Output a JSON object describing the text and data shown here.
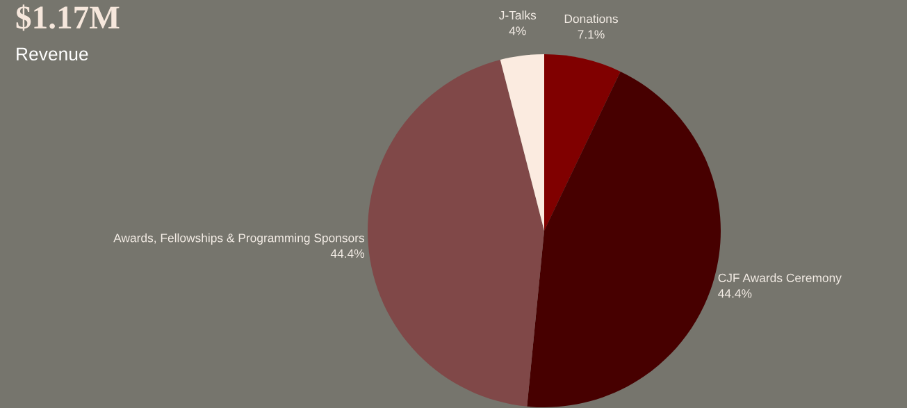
{
  "chart_data": {
    "type": "pie",
    "title": "$1.17M",
    "subtitle": "Revenue",
    "categories": [
      "Donations",
      "CJF Awards Ceremony",
      "Awards, Fellowships & Programming Sponsors",
      "J-Talks"
    ],
    "values": [
      7.1,
      44.4,
      44.4,
      4
    ],
    "colors": [
      "#800000",
      "#470000",
      "#804848",
      "#fbebe0"
    ],
    "value_labels": [
      "7.1%",
      "44.4%",
      "44.4%",
      "4%"
    ]
  }
}
